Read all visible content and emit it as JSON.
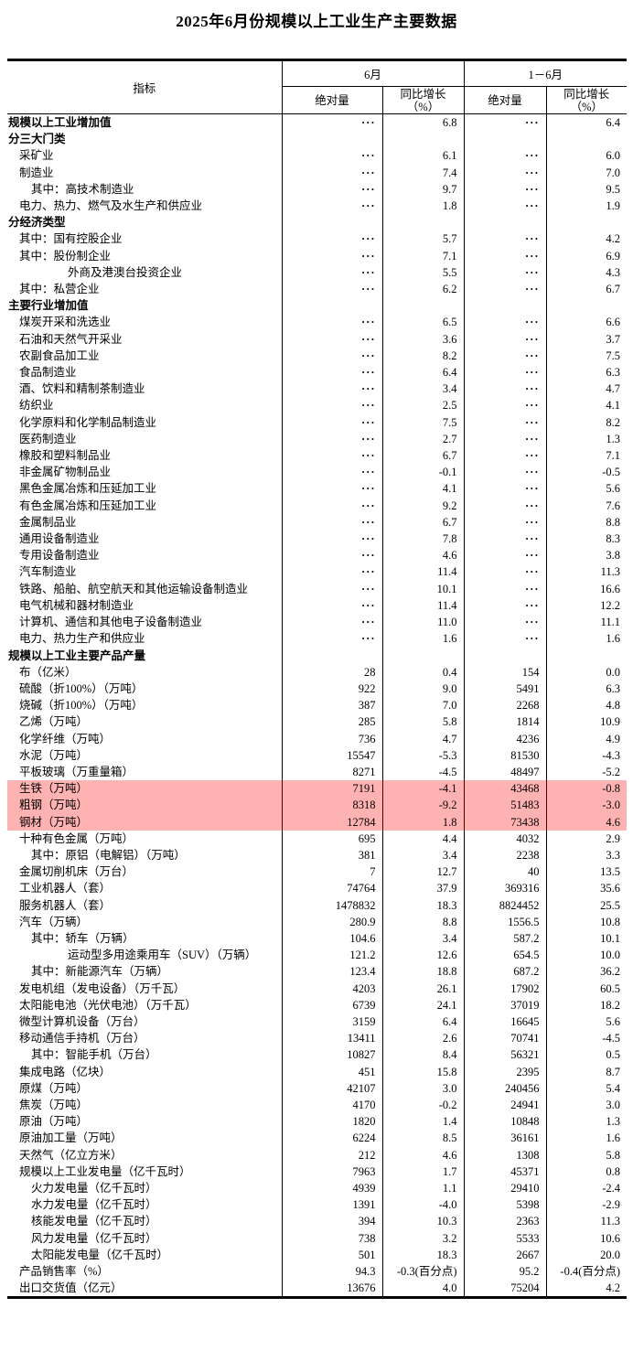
{
  "page": {
    "title": "2025年6月份规模以上工业生产主要数据"
  },
  "table": {
    "headers": {
      "indicator": "指标",
      "period_june": "6月",
      "period_cumulative": "1－6月",
      "absolute": "绝对量",
      "yoy_growth": "同比增长",
      "yoy_unit": "（%）"
    },
    "no_data_symbol": "···",
    "highlight_color": "#ffb2b2",
    "rows": [
      {
        "label": "规模以上工业增加值",
        "lv": 0,
        "b": true,
        "hl": false,
        "v": [
          "···",
          "6.8",
          "···",
          "6.4"
        ]
      },
      {
        "label": "分三大门类",
        "lv": 0,
        "b": true,
        "hl": false,
        "v": [
          "",
          "",
          "",
          ""
        ]
      },
      {
        "label": "采矿业",
        "lv": 1,
        "b": false,
        "hl": false,
        "v": [
          "···",
          "6.1",
          "···",
          "6.0"
        ]
      },
      {
        "label": "制造业",
        "lv": 1,
        "b": false,
        "hl": false,
        "v": [
          "···",
          "7.4",
          "···",
          "7.0"
        ]
      },
      {
        "label": "其中：高技术制造业",
        "lv": 2,
        "b": false,
        "hl": false,
        "v": [
          "···",
          "9.7",
          "···",
          "9.5"
        ]
      },
      {
        "label": "电力、热力、燃气及水生产和供应业",
        "lv": 1,
        "b": false,
        "hl": false,
        "v": [
          "···",
          "1.8",
          "···",
          "1.9"
        ]
      },
      {
        "label": "分经济类型",
        "lv": 0,
        "b": true,
        "hl": false,
        "v": [
          "",
          "",
          "",
          ""
        ]
      },
      {
        "label": "其中：国有控股企业",
        "lv": 1,
        "b": false,
        "hl": false,
        "v": [
          "···",
          "5.7",
          "···",
          "4.2"
        ]
      },
      {
        "label": "其中：股份制企业",
        "lv": 1,
        "b": false,
        "hl": false,
        "v": [
          "···",
          "7.1",
          "···",
          "6.9"
        ]
      },
      {
        "label": "外商及港澳台投资企业",
        "lv": 3,
        "b": false,
        "hl": false,
        "v": [
          "···",
          "5.5",
          "···",
          "4.3"
        ]
      },
      {
        "label": "其中：私营企业",
        "lv": 1,
        "b": false,
        "hl": false,
        "v": [
          "···",
          "6.2",
          "···",
          "6.7"
        ]
      },
      {
        "label": "主要行业增加值",
        "lv": 0,
        "b": true,
        "hl": false,
        "v": [
          "",
          "",
          "",
          ""
        ]
      },
      {
        "label": "煤炭开采和洗选业",
        "lv": 1,
        "b": false,
        "hl": false,
        "v": [
          "···",
          "6.5",
          "···",
          "6.6"
        ]
      },
      {
        "label": "石油和天然气开采业",
        "lv": 1,
        "b": false,
        "hl": false,
        "v": [
          "···",
          "3.6",
          "···",
          "3.7"
        ]
      },
      {
        "label": "农副食品加工业",
        "lv": 1,
        "b": false,
        "hl": false,
        "v": [
          "···",
          "8.2",
          "···",
          "7.5"
        ]
      },
      {
        "label": "食品制造业",
        "lv": 1,
        "b": false,
        "hl": false,
        "v": [
          "···",
          "6.4",
          "···",
          "6.3"
        ]
      },
      {
        "label": "酒、饮料和精制茶制造业",
        "lv": 1,
        "b": false,
        "hl": false,
        "v": [
          "···",
          "3.4",
          "···",
          "4.7"
        ]
      },
      {
        "label": "纺织业",
        "lv": 1,
        "b": false,
        "hl": false,
        "v": [
          "···",
          "2.5",
          "···",
          "4.1"
        ]
      },
      {
        "label": "化学原料和化学制品制造业",
        "lv": 1,
        "b": false,
        "hl": false,
        "v": [
          "···",
          "7.5",
          "···",
          "8.2"
        ]
      },
      {
        "label": "医药制造业",
        "lv": 1,
        "b": false,
        "hl": false,
        "v": [
          "···",
          "2.7",
          "···",
          "1.3"
        ]
      },
      {
        "label": "橡胶和塑料制品业",
        "lv": 1,
        "b": false,
        "hl": false,
        "v": [
          "···",
          "6.7",
          "···",
          "7.1"
        ]
      },
      {
        "label": "非金属矿物制品业",
        "lv": 1,
        "b": false,
        "hl": false,
        "v": [
          "···",
          "-0.1",
          "···",
          "-0.5"
        ]
      },
      {
        "label": "黑色金属冶炼和压延加工业",
        "lv": 1,
        "b": false,
        "hl": false,
        "v": [
          "···",
          "4.1",
          "···",
          "5.6"
        ]
      },
      {
        "label": "有色金属冶炼和压延加工业",
        "lv": 1,
        "b": false,
        "hl": false,
        "v": [
          "···",
          "9.2",
          "···",
          "7.6"
        ]
      },
      {
        "label": "金属制品业",
        "lv": 1,
        "b": false,
        "hl": false,
        "v": [
          "···",
          "6.7",
          "···",
          "8.8"
        ]
      },
      {
        "label": "通用设备制造业",
        "lv": 1,
        "b": false,
        "hl": false,
        "v": [
          "···",
          "7.8",
          "···",
          "8.3"
        ]
      },
      {
        "label": "专用设备制造业",
        "lv": 1,
        "b": false,
        "hl": false,
        "v": [
          "···",
          "4.6",
          "···",
          "3.8"
        ]
      },
      {
        "label": "汽车制造业",
        "lv": 1,
        "b": false,
        "hl": false,
        "v": [
          "···",
          "11.4",
          "···",
          "11.3"
        ]
      },
      {
        "label": "铁路、船舶、航空航天和其他运输设备制造业",
        "lv": 1,
        "b": false,
        "hl": false,
        "v": [
          "···",
          "10.1",
          "···",
          "16.6"
        ]
      },
      {
        "label": "电气机械和器材制造业",
        "lv": 1,
        "b": false,
        "hl": false,
        "v": [
          "···",
          "11.4",
          "···",
          "12.2"
        ]
      },
      {
        "label": "计算机、通信和其他电子设备制造业",
        "lv": 1,
        "b": false,
        "hl": false,
        "v": [
          "···",
          "11.0",
          "···",
          "11.1"
        ]
      },
      {
        "label": "电力、热力生产和供应业",
        "lv": 1,
        "b": false,
        "hl": false,
        "v": [
          "···",
          "1.6",
          "···",
          "1.6"
        ]
      },
      {
        "label": "规模以上工业主要产品产量",
        "lv": 0,
        "b": true,
        "hl": false,
        "v": [
          "",
          "",
          "",
          ""
        ]
      },
      {
        "label": "布（亿米）",
        "lv": 1,
        "b": false,
        "hl": false,
        "v": [
          "28",
          "0.4",
          "154",
          "0.0"
        ]
      },
      {
        "label": "硫酸（折100%）（万吨）",
        "lv": 1,
        "b": false,
        "hl": false,
        "v": [
          "922",
          "9.0",
          "5491",
          "6.3"
        ]
      },
      {
        "label": "烧碱（折100%）（万吨）",
        "lv": 1,
        "b": false,
        "hl": false,
        "v": [
          "387",
          "7.0",
          "2268",
          "4.8"
        ]
      },
      {
        "label": "乙烯（万吨）",
        "lv": 1,
        "b": false,
        "hl": false,
        "v": [
          "285",
          "5.8",
          "1814",
          "10.9"
        ]
      },
      {
        "label": "化学纤维（万吨）",
        "lv": 1,
        "b": false,
        "hl": false,
        "v": [
          "736",
          "4.7",
          "4236",
          "4.9"
        ]
      },
      {
        "label": "水泥（万吨）",
        "lv": 1,
        "b": false,
        "hl": false,
        "v": [
          "15547",
          "-5.3",
          "81530",
          "-4.3"
        ]
      },
      {
        "label": "平板玻璃（万重量箱）",
        "lv": 1,
        "b": false,
        "hl": false,
        "v": [
          "8271",
          "-4.5",
          "48497",
          "-5.2"
        ]
      },
      {
        "label": "生铁（万吨）",
        "lv": 1,
        "b": false,
        "hl": true,
        "v": [
          "7191",
          "-4.1",
          "43468",
          "-0.8"
        ]
      },
      {
        "label": "粗钢（万吨）",
        "lv": 1,
        "b": false,
        "hl": true,
        "v": [
          "8318",
          "-9.2",
          "51483",
          "-3.0"
        ]
      },
      {
        "label": "钢材（万吨）",
        "lv": 1,
        "b": false,
        "hl": true,
        "v": [
          "12784",
          "1.8",
          "73438",
          "4.6"
        ]
      },
      {
        "label": "十种有色金属（万吨）",
        "lv": 1,
        "b": false,
        "hl": false,
        "v": [
          "695",
          "4.4",
          "4032",
          "2.9"
        ]
      },
      {
        "label": "其中：原铝（电解铝）（万吨）",
        "lv": 2,
        "b": false,
        "hl": false,
        "v": [
          "381",
          "3.4",
          "2238",
          "3.3"
        ]
      },
      {
        "label": "金属切削机床（万台）",
        "lv": 1,
        "b": false,
        "hl": false,
        "v": [
          "7",
          "12.7",
          "40",
          "13.5"
        ]
      },
      {
        "label": "工业机器人（套）",
        "lv": 1,
        "b": false,
        "hl": false,
        "v": [
          "74764",
          "37.9",
          "369316",
          "35.6"
        ]
      },
      {
        "label": "服务机器人（套）",
        "lv": 1,
        "b": false,
        "hl": false,
        "v": [
          "1478832",
          "18.3",
          "8824452",
          "25.5"
        ]
      },
      {
        "label": "汽车（万辆）",
        "lv": 1,
        "b": false,
        "hl": false,
        "v": [
          "280.9",
          "8.8",
          "1556.5",
          "10.8"
        ]
      },
      {
        "label": "其中：轿车（万辆）",
        "lv": 2,
        "b": false,
        "hl": false,
        "v": [
          "104.6",
          "3.4",
          "587.2",
          "10.1"
        ]
      },
      {
        "label": "运动型多用途乘用车（SUV）（万辆）",
        "lv": 3,
        "b": false,
        "hl": false,
        "v": [
          "121.2",
          "12.6",
          "654.5",
          "10.0"
        ]
      },
      {
        "label": "其中：新能源汽车（万辆）",
        "lv": 2,
        "b": false,
        "hl": false,
        "v": [
          "123.4",
          "18.8",
          "687.2",
          "36.2"
        ]
      },
      {
        "label": "发电机组（发电设备）（万千瓦）",
        "lv": 1,
        "b": false,
        "hl": false,
        "v": [
          "4203",
          "26.1",
          "17902",
          "60.5"
        ]
      },
      {
        "label": "太阳能电池（光伏电池）（万千瓦）",
        "lv": 1,
        "b": false,
        "hl": false,
        "v": [
          "6739",
          "24.1",
          "37019",
          "18.2"
        ]
      },
      {
        "label": "微型计算机设备（万台）",
        "lv": 1,
        "b": false,
        "hl": false,
        "v": [
          "3159",
          "6.4",
          "16645",
          "5.6"
        ]
      },
      {
        "label": "移动通信手持机（万台）",
        "lv": 1,
        "b": false,
        "hl": false,
        "v": [
          "13411",
          "2.6",
          "70741",
          "-4.5"
        ]
      },
      {
        "label": "其中：智能手机（万台）",
        "lv": 2,
        "b": false,
        "hl": false,
        "v": [
          "10827",
          "8.4",
          "56321",
          "0.5"
        ]
      },
      {
        "label": "集成电路（亿块）",
        "lv": 1,
        "b": false,
        "hl": false,
        "v": [
          "451",
          "15.8",
          "2395",
          "8.7"
        ]
      },
      {
        "label": "原煤（万吨）",
        "lv": 1,
        "b": false,
        "hl": false,
        "v": [
          "42107",
          "3.0",
          "240456",
          "5.4"
        ]
      },
      {
        "label": "焦炭（万吨）",
        "lv": 1,
        "b": false,
        "hl": false,
        "v": [
          "4170",
          "-0.2",
          "24941",
          "3.0"
        ]
      },
      {
        "label": "原油（万吨）",
        "lv": 1,
        "b": false,
        "hl": false,
        "v": [
          "1820",
          "1.4",
          "10848",
          "1.3"
        ]
      },
      {
        "label": "原油加工量（万吨）",
        "lv": 1,
        "b": false,
        "hl": false,
        "v": [
          "6224",
          "8.5",
          "36161",
          "1.6"
        ]
      },
      {
        "label": "天然气（亿立方米）",
        "lv": 1,
        "b": false,
        "hl": false,
        "v": [
          "212",
          "4.6",
          "1308",
          "5.8"
        ]
      },
      {
        "label": "规模以上工业发电量（亿千瓦时）",
        "lv": 1,
        "b": false,
        "hl": false,
        "v": [
          "7963",
          "1.7",
          "45371",
          "0.8"
        ]
      },
      {
        "label": "火力发电量（亿千瓦时）",
        "lv": 2,
        "b": false,
        "hl": false,
        "v": [
          "4939",
          "1.1",
          "29410",
          "-2.4"
        ]
      },
      {
        "label": "水力发电量（亿千瓦时）",
        "lv": 2,
        "b": false,
        "hl": false,
        "v": [
          "1391",
          "-4.0",
          "5398",
          "-2.9"
        ]
      },
      {
        "label": "核能发电量（亿千瓦时）",
        "lv": 2,
        "b": false,
        "hl": false,
        "v": [
          "394",
          "10.3",
          "2363",
          "11.3"
        ]
      },
      {
        "label": "风力发电量（亿千瓦时）",
        "lv": 2,
        "b": false,
        "hl": false,
        "v": [
          "738",
          "3.2",
          "5533",
          "10.6"
        ]
      },
      {
        "label": "太阳能发电量（亿千瓦时）",
        "lv": 2,
        "b": false,
        "hl": false,
        "v": [
          "501",
          "18.3",
          "2667",
          "20.0"
        ]
      },
      {
        "label": "产品销售率（%）",
        "lv": 1,
        "b": false,
        "hl": false,
        "v": [
          "94.3",
          "-0.3(百分点)",
          "95.2",
          "-0.4(百分点)"
        ]
      },
      {
        "label": "出口交货值（亿元）",
        "lv": 1,
        "b": false,
        "hl": false,
        "v": [
          "13676",
          "4.0",
          "75204",
          "4.2"
        ]
      }
    ]
  }
}
